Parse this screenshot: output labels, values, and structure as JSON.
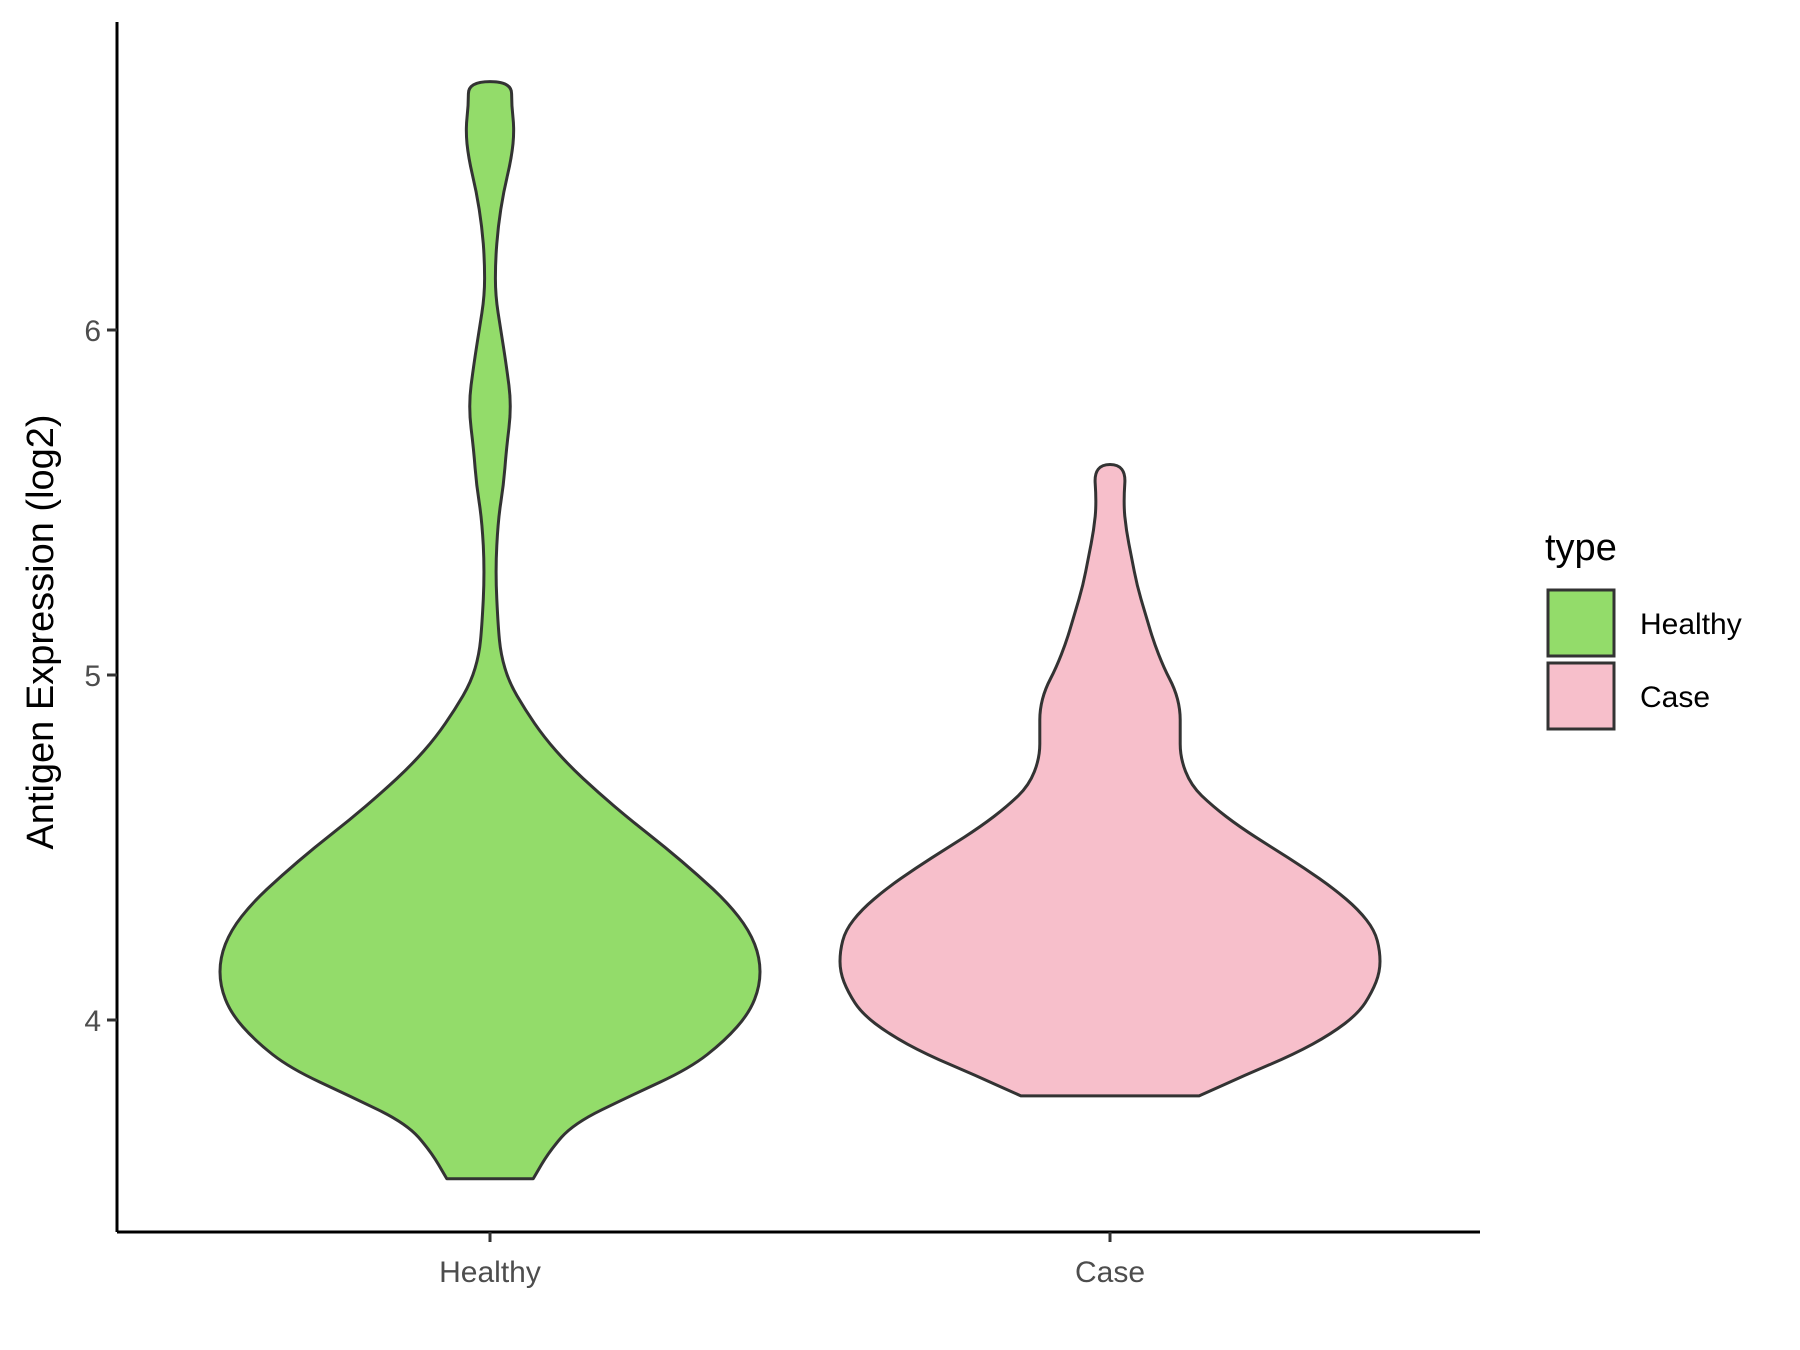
{
  "chart_data": {
    "type": "violin",
    "ylabel": "Antigen Expression (log2)",
    "xlabel": "",
    "categories": [
      "Healthy",
      "Case"
    ],
    "y_ticks": [
      4,
      5,
      6
    ],
    "ylim": [
      3.37,
      6.87
    ],
    "grid": false,
    "legend": {
      "title": "type",
      "position": "right",
      "items": [
        {
          "label": "Healthy",
          "color": "#93dc6a"
        },
        {
          "label": "Case",
          "color": "#f7bfcb"
        }
      ]
    },
    "series": [
      {
        "category": "Healthy",
        "color": "#93dc6a",
        "min": 3.54,
        "max": 6.72,
        "density_profile": [
          [
            3.54,
            0.16
          ],
          [
            3.62,
            0.22
          ],
          [
            3.7,
            0.31
          ],
          [
            3.78,
            0.52
          ],
          [
            3.86,
            0.74
          ],
          [
            3.94,
            0.87
          ],
          [
            4.02,
            0.96
          ],
          [
            4.1,
            1.0
          ],
          [
            4.18,
            1.0
          ],
          [
            4.26,
            0.96
          ],
          [
            4.34,
            0.88
          ],
          [
            4.42,
            0.77
          ],
          [
            4.5,
            0.65
          ],
          [
            4.58,
            0.52
          ],
          [
            4.66,
            0.4
          ],
          [
            4.74,
            0.29
          ],
          [
            4.82,
            0.2
          ],
          [
            4.9,
            0.13
          ],
          [
            4.98,
            0.07
          ],
          [
            5.06,
            0.04
          ],
          [
            5.14,
            0.03
          ],
          [
            5.3,
            0.02
          ],
          [
            5.45,
            0.03
          ],
          [
            5.55,
            0.05
          ],
          [
            5.65,
            0.06
          ],
          [
            5.78,
            0.08
          ],
          [
            5.9,
            0.06
          ],
          [
            6.0,
            0.04
          ],
          [
            6.1,
            0.02
          ],
          [
            6.2,
            0.02
          ],
          [
            6.3,
            0.03
          ],
          [
            6.4,
            0.05
          ],
          [
            6.5,
            0.08
          ],
          [
            6.58,
            0.09
          ],
          [
            6.65,
            0.08
          ],
          [
            6.72,
            0.08
          ]
        ]
      },
      {
        "category": "Case",
        "color": "#f7bfcb",
        "min": 3.78,
        "max": 5.61,
        "density_profile": [
          [
            3.78,
            0.33
          ],
          [
            3.84,
            0.5
          ],
          [
            3.9,
            0.68
          ],
          [
            3.96,
            0.82
          ],
          [
            4.02,
            0.92
          ],
          [
            4.08,
            0.97
          ],
          [
            4.14,
            1.0
          ],
          [
            4.2,
            1.0
          ],
          [
            4.26,
            0.98
          ],
          [
            4.32,
            0.92
          ],
          [
            4.38,
            0.83
          ],
          [
            4.44,
            0.72
          ],
          [
            4.5,
            0.6
          ],
          [
            4.56,
            0.48
          ],
          [
            4.62,
            0.38
          ],
          [
            4.68,
            0.3
          ],
          [
            4.76,
            0.26
          ],
          [
            4.84,
            0.26
          ],
          [
            4.9,
            0.26
          ],
          [
            4.96,
            0.24
          ],
          [
            5.02,
            0.2
          ],
          [
            5.1,
            0.16
          ],
          [
            5.18,
            0.13
          ],
          [
            5.26,
            0.1
          ],
          [
            5.34,
            0.08
          ],
          [
            5.42,
            0.06
          ],
          [
            5.5,
            0.05
          ],
          [
            5.61,
            0.06
          ]
        ]
      }
    ]
  }
}
